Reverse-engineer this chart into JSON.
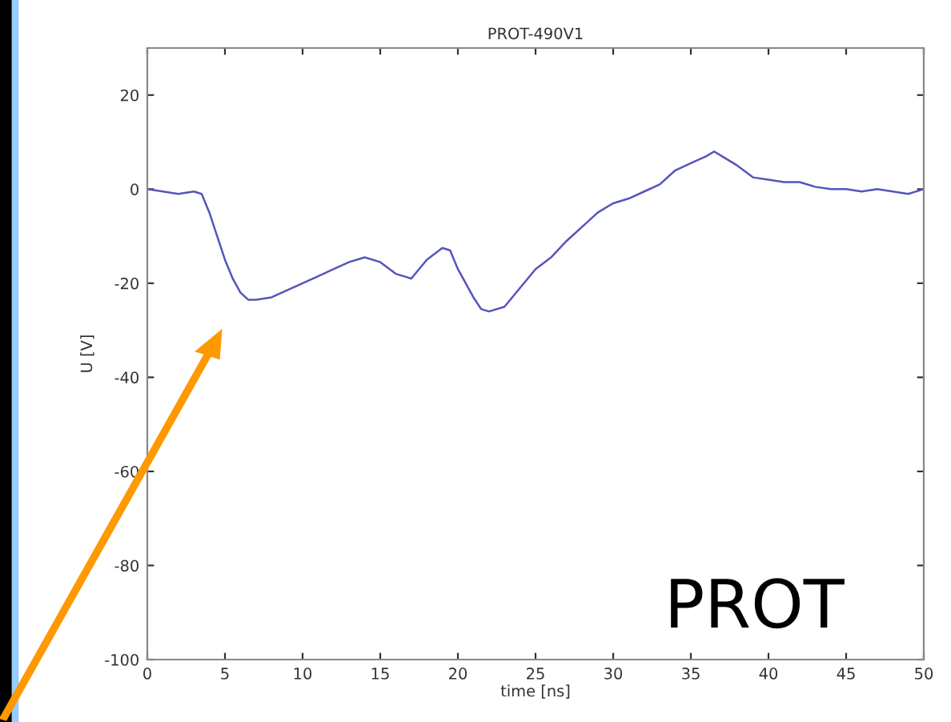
{
  "chart_data": {
    "type": "line",
    "title": "PROT-490V1",
    "xlabel": "time [ns]",
    "ylabel": "U [V]",
    "x": [
      0,
      1,
      2,
      3,
      3.5,
      4,
      4.5,
      5,
      5.5,
      6,
      6.5,
      7,
      8,
      9,
      10,
      11,
      12,
      13,
      14,
      15,
      16,
      17,
      18,
      19,
      19.5,
      20,
      21,
      21.5,
      22,
      23,
      24,
      25,
      26,
      27,
      28,
      29,
      30,
      31,
      32,
      33,
      34,
      35,
      36,
      36.5,
      37,
      38,
      39,
      40,
      41,
      42,
      43,
      44,
      45,
      46,
      47,
      48,
      49,
      50
    ],
    "series": [
      {
        "color": "#5555bb",
        "values": [
          0,
          -0.5,
          -1,
          -0.5,
          -1,
          -5,
          -10,
          -15,
          -19,
          -22,
          -23.5,
          -23.5,
          -23,
          -21.5,
          -20,
          -18.5,
          -17,
          -15.5,
          -14.5,
          -15.5,
          -18,
          -19,
          -15,
          -12.5,
          -13,
          -17,
          -23,
          -25.5,
          -26,
          -25,
          -21,
          -17,
          -14.5,
          -11,
          -8,
          -5,
          -3,
          -2,
          -0.5,
          1,
          4,
          5.5,
          7,
          8,
          7,
          5,
          2.5,
          2,
          1.5,
          1.5,
          0.5,
          0,
          0,
          -0.5,
          0,
          -0.5,
          -1,
          0
        ]
      }
    ],
    "xlim": [
      0,
      50
    ],
    "ylim": [
      -100,
      30
    ],
    "xticks": [
      0,
      5,
      10,
      15,
      20,
      25,
      30,
      35,
      40,
      45,
      50
    ],
    "yticks": [
      -100,
      -80,
      -60,
      -40,
      -20,
      0,
      20
    ],
    "grid": false,
    "legend": false,
    "annotations": [
      "PROT"
    ]
  }
}
